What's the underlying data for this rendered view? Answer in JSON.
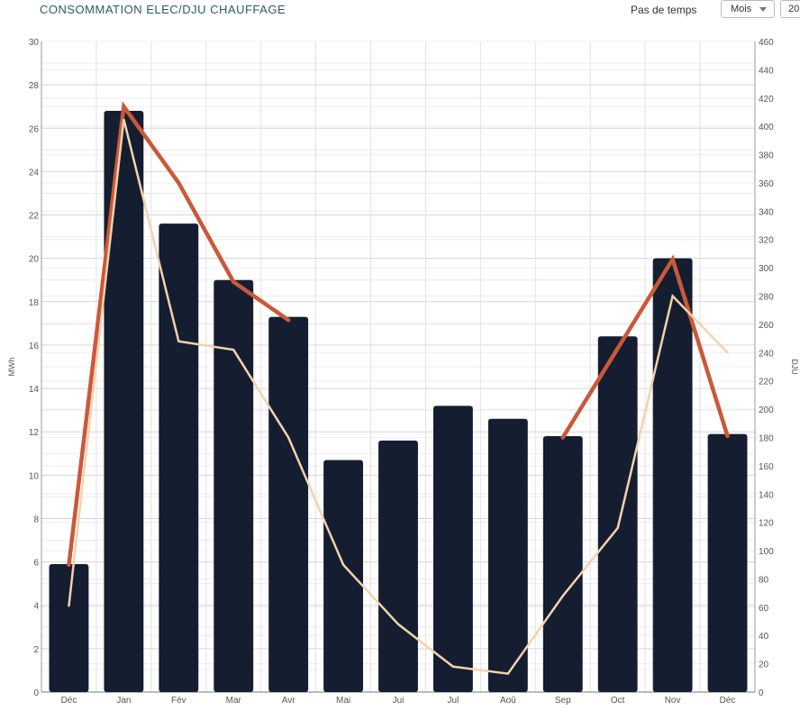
{
  "header": {
    "title": "CONSOMMATION ELEC/DJU CHAUFFAGE",
    "timestep_label": "Pas de temps",
    "timestep_value": "Mois",
    "second_select_value": "20"
  },
  "chart_data": {
    "type": "bar",
    "categories": [
      "Déc",
      "Jan",
      "Fév",
      "Mar",
      "Avr",
      "Mai",
      "Jui",
      "Jul",
      "Aoû",
      "Sep",
      "Oct",
      "Nov",
      "Déc"
    ],
    "series": [
      {
        "kind": "bar",
        "axis": "left",
        "color": "#151e30",
        "values": [
          5.9,
          26.8,
          21.6,
          19.0,
          17.3,
          10.7,
          11.6,
          13.2,
          12.6,
          11.8,
          16.4,
          20.0,
          11.9
        ]
      },
      {
        "kind": "line",
        "axis": "right",
        "color": "#c9593a",
        "values": [
          90,
          414,
          360,
          290,
          263,
          null,
          null,
          null,
          null,
          180,
          243,
          306,
          181
        ]
      },
      {
        "kind": "line",
        "axis": "right",
        "color": "#f3d2ac",
        "values": [
          61,
          405,
          248,
          242,
          180,
          90,
          48,
          18,
          13,
          68,
          116,
          280,
          240
        ]
      }
    ],
    "ylabel": "MWh",
    "y2label": "DJU",
    "ylim": [
      0,
      30
    ],
    "y2lim": [
      0,
      460
    ],
    "yticks": [
      0,
      2,
      4,
      6,
      8,
      10,
      12,
      14,
      16,
      18,
      20,
      22,
      24,
      26,
      28,
      30
    ],
    "y2ticks": [
      0,
      20,
      40,
      60,
      80,
      100,
      120,
      140,
      160,
      180,
      200,
      220,
      240,
      260,
      280,
      300,
      320,
      340,
      360,
      380,
      400,
      420,
      440,
      460
    ],
    "grid": true
  }
}
